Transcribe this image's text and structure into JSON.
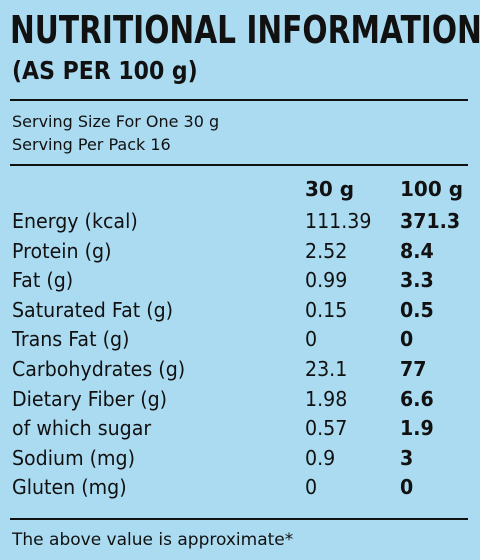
{
  "header": {
    "title": "NUTRITIONAL INFORMATION",
    "subtitle": "(AS PER 100 g)"
  },
  "serving": [
    "Serving Size For One 30 g",
    "Serving Per Pack 16"
  ],
  "table": {
    "columns": [
      "30 g",
      "100 g"
    ],
    "rows": [
      [
        "Energy (kcal)",
        "111.39",
        "371.3"
      ],
      [
        "Protein (g)",
        "2.52",
        "8.4"
      ],
      [
        "Fat (g)",
        "0.99",
        "3.3"
      ],
      [
        "Saturated Fat (g)",
        "0.15",
        "0.5"
      ],
      [
        "Trans Fat (g)",
        "0",
        "0"
      ],
      [
        "Carbohydrates (g)",
        "23.1",
        "77"
      ],
      [
        "Dietary Fiber (g)",
        "1.98",
        "6.6"
      ],
      [
        "of which sugar",
        "0.57",
        "1.9"
      ],
      [
        "Sodium (mg)",
        "0.9",
        "3"
      ],
      [
        "Gluten (mg)",
        "0",
        "0"
      ]
    ]
  },
  "footer": "The above value is approximate*"
}
